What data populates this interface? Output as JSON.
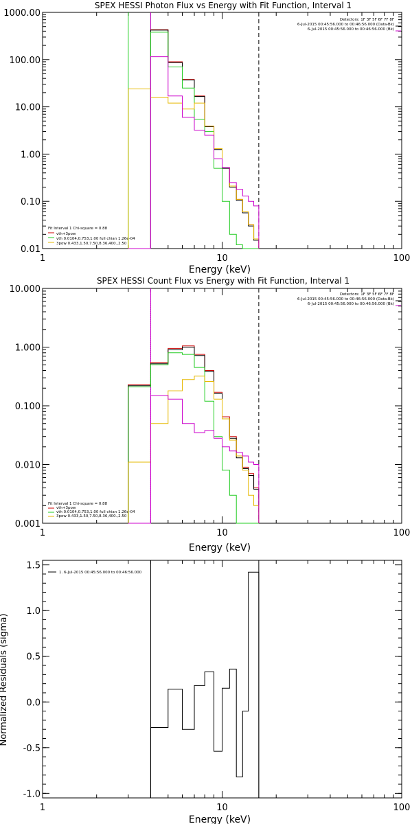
{
  "chart_data": [
    {
      "type": "line",
      "title": "SPEX HESSI Photon Flux vs Energy with Fit Function, Interval 1",
      "xlabel": "Energy (keV)",
      "ylabel": "",
      "xscale": "log",
      "yscale": "log",
      "xlim": [
        1,
        100
      ],
      "ylim": [
        0.01,
        1000
      ],
      "xticks": [
        "1",
        "10",
        "100"
      ],
      "yticks": [
        {
          "v": 1000,
          "label": "1000.00"
        },
        {
          "v": 100,
          "label": "100.00"
        },
        {
          "v": 10,
          "label": "10.00"
        },
        {
          "v": 1,
          "label": "1.00"
        },
        {
          "v": 0.1,
          "label": "0.10"
        },
        {
          "v": 0.01,
          "label": "0.01"
        }
      ],
      "edges": [
        3.0,
        4.0,
        5.0,
        6.0,
        7.0,
        8.0,
        9.0,
        10.0,
        11.0,
        12.0,
        13.0,
        14.0,
        15.0,
        16.0
      ],
      "series": [
        {
          "name": "vth+3pow",
          "color": "#cc0000",
          "values": [
            0.01,
            430,
            90,
            38,
            17,
            3.9,
            1.3,
            0.52,
            0.21,
            0.11,
            0.06,
            0.032,
            0.016
          ]
        },
        {
          "name": "",
          "color": "#000000",
          "values": [
            0.01,
            420,
            86,
            37,
            16.5,
            3.8,
            1.25,
            0.5,
            0.2,
            0.105,
            0.057,
            0.03,
            0.015
          ]
        },
        {
          "name": "vth 0.0104,0.753,1.00  full chian 1.26e-04",
          "color": "#22cc22",
          "values": [
            0.01,
            380,
            70,
            25,
            5.5,
            3.0,
            0.5,
            0.1,
            0.02,
            0.012,
            0.01,
            0.01,
            0.01
          ]
        },
        {
          "name": "3pow 0.433,1.50,7.50,8.36,400.,2.50",
          "color": "#e6b800",
          "values": [
            24,
            16,
            12,
            9,
            12,
            3.9,
            1.3,
            0.52,
            0.21,
            0.11,
            0.06,
            0.032,
            0.016
          ]
        },
        {
          "name": "",
          "color": "#cc00cc",
          "values": [
            0.01,
            115,
            17,
            6.0,
            3.2,
            2.5,
            0.8,
            0.52,
            0.25,
            0.18,
            0.13,
            0.1,
            0.08
          ]
        }
      ],
      "vlines": [
        {
          "x": 3.0,
          "color": "#22cc22",
          "style": "solid"
        },
        {
          "x": 4.0,
          "color": "#22cc22",
          "style": "solid"
        },
        {
          "x": 4.0,
          "color": "#cc00cc",
          "style": "solid"
        },
        {
          "x": 16.0,
          "color": "#000000",
          "style": "dashed"
        }
      ],
      "legend_lines": [
        "Detectors: 1F 3F 5F 6F 7F 8F",
        "6-Jul-2015 00:45:56.000 to 00:46:56.000 (Data-Bk)",
        "6-Jul-2015 00:45:56.000 to 00:46:56.000 (Bk)"
      ],
      "fit_label": "Fit Interval  1    Chi-square = 0.88"
    },
    {
      "type": "line",
      "title": "SPEX HESSI Count Flux vs Energy with Fit Function, Interval 1",
      "xlabel": "Energy (keV)",
      "ylabel": "",
      "xscale": "log",
      "yscale": "log",
      "xlim": [
        1,
        100
      ],
      "ylim": [
        0.001,
        10
      ],
      "xticks": [
        "1",
        "10",
        "100"
      ],
      "yticks": [
        {
          "v": 10,
          "label": "10.000"
        },
        {
          "v": 1,
          "label": "1.000"
        },
        {
          "v": 0.1,
          "label": "0.100"
        },
        {
          "v": 0.01,
          "label": "0.010"
        },
        {
          "v": 0.001,
          "label": "0.001"
        }
      ],
      "edges": [
        3.0,
        4.0,
        5.0,
        6.0,
        7.0,
        8.0,
        9.0,
        10.0,
        11.0,
        12.0,
        13.0,
        14.0,
        15.0,
        16.0
      ],
      "series": [
        {
          "name": "vth+3pow",
          "color": "#cc0000",
          "values": [
            0.23,
            0.55,
            0.95,
            1.05,
            0.75,
            0.4,
            0.17,
            0.065,
            0.03,
            0.014,
            0.009,
            0.007,
            0.004
          ]
        },
        {
          "name": "",
          "color": "#000000",
          "values": [
            0.22,
            0.52,
            0.9,
            1.0,
            0.72,
            0.38,
            0.16,
            0.06,
            0.028,
            0.013,
            0.0085,
            0.0065,
            0.0038
          ]
        },
        {
          "name": "vth 0.0104,0.753,1.00  full chian 1.26e-04",
          "color": "#22cc22",
          "values": [
            0.21,
            0.5,
            0.8,
            0.75,
            0.45,
            0.12,
            0.03,
            0.008,
            0.003,
            0.001,
            0.001,
            0.001,
            0.001
          ]
        },
        {
          "name": "3pow 0.433,1.50,7.50,8.36,400.,2.50",
          "color": "#e6b800",
          "values": [
            0.011,
            0.05,
            0.18,
            0.28,
            0.32,
            0.26,
            0.13,
            0.06,
            0.026,
            0.014,
            0.008,
            0.003,
            0.002
          ]
        },
        {
          "name": "",
          "color": "#cc00cc",
          "values": [
            0.001,
            0.15,
            0.13,
            0.05,
            0.035,
            0.038,
            0.028,
            0.02,
            0.017,
            0.016,
            0.014,
            0.011,
            0.01
          ]
        }
      ],
      "vlines": [
        {
          "x": 4.0,
          "color": "#000000",
          "style": "dotted"
        },
        {
          "x": 4.0,
          "color": "#cc00cc",
          "style": "solid"
        },
        {
          "x": 16.0,
          "color": "#000000",
          "style": "dashed"
        }
      ],
      "legend_lines": [
        "Detectors: 1F 3F 5F 6F 7F 8F",
        "6-Jul-2015 00:45:56.000 to 00:46:56.000 (Data-Bk)",
        "6-Jul-2015 00:45:56.000 to 00:46:56.000 (Bk)"
      ],
      "fit_label": "Fit Interval  1    Chi-square = 0.88"
    },
    {
      "type": "line",
      "title": "",
      "xlabel": "Energy (keV)",
      "ylabel": "Normalized Residuals (sigma)",
      "xscale": "log",
      "yscale": "linear",
      "xlim": [
        1,
        100
      ],
      "ylim": [
        -1.05,
        1.55
      ],
      "xticks": [
        "1",
        "10",
        "100"
      ],
      "yticks": [
        {
          "v": 1.5,
          "label": "1.5"
        },
        {
          "v": 1.0,
          "label": "1.0"
        },
        {
          "v": 0.5,
          "label": "0.5"
        },
        {
          "v": 0.0,
          "label": "0.0"
        },
        {
          "v": -0.5,
          "label": "-0.5"
        },
        {
          "v": -1.0,
          "label": "-1.0"
        }
      ],
      "edges": [
        4.0,
        5.0,
        6.0,
        7.0,
        8.0,
        9.0,
        10.0,
        11.0,
        12.0,
        13.0,
        14.0,
        15.0,
        16.0
      ],
      "series": [
        {
          "name": "1.  6-Jul-2015 00:45:56.000 to 00:46:56.000",
          "color": "#000000",
          "values": [
            -0.28,
            0.14,
            -0.3,
            0.18,
            0.33,
            -0.54,
            0.15,
            0.36,
            -0.82,
            -0.1,
            1.42,
            1.42
          ]
        }
      ],
      "vlines": [
        {
          "x": 4.0,
          "color": "#000000",
          "style": "solid"
        },
        {
          "x": 16.0,
          "color": "#000000",
          "style": "solid"
        }
      ]
    }
  ]
}
